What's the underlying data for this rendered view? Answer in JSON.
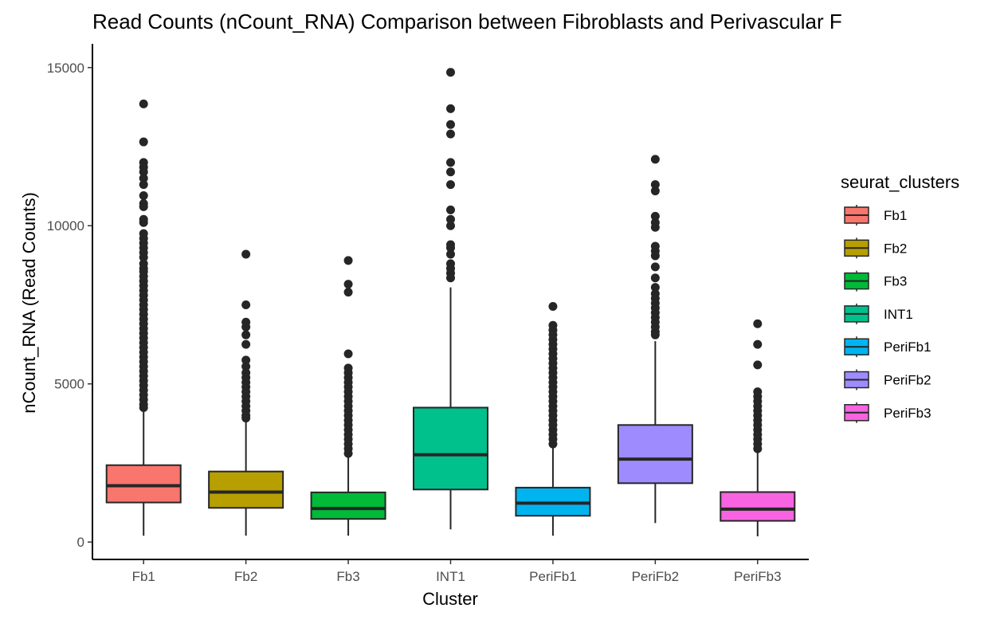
{
  "chart_data": {
    "type": "box",
    "title": "Read Counts (nCount_RNA) Comparison between Fibroblasts and Perivascular F",
    "xlabel": "Cluster",
    "ylabel": "nCount_RNA (Read Counts)",
    "ylim": [
      -550,
      15750
    ],
    "yticks": [
      0,
      5000,
      10000,
      15000
    ],
    "grid": false,
    "legend": {
      "title": "seurat_clusters",
      "position": "right"
    },
    "categories": [
      "Fb1",
      "Fb2",
      "Fb3",
      "INT1",
      "PeriFb1",
      "PeriFb2",
      "PeriFb3"
    ],
    "series": [
      {
        "name": "Fb1",
        "color": "#F8766D",
        "min": 200,
        "q1": 1250,
        "median": 1780,
        "q3": 2430,
        "max": 4200,
        "outliers": [
          13850,
          12650,
          12000,
          11850,
          11700,
          11500,
          11300,
          10950,
          10700,
          10600,
          10200,
          10100,
          9750,
          9600,
          9450,
          9300,
          9150,
          9000,
          8800,
          8650,
          8550,
          8400,
          8250,
          8100,
          7950,
          7800,
          7650,
          7500,
          7350,
          7200,
          7050,
          6900,
          6750,
          6600,
          6450,
          6300,
          6150,
          6000,
          5850,
          5700,
          5550,
          5400,
          5250,
          5100,
          4950,
          4800,
          4650,
          4500,
          4350,
          4250
        ]
      },
      {
        "name": "Fb2",
        "color": "#B79F00",
        "min": 200,
        "q1": 1080,
        "median": 1580,
        "q3": 2230,
        "max": 3850,
        "outliers": [
          9100,
          7500,
          6950,
          6800,
          6550,
          6250,
          5750,
          5550,
          5350,
          5200,
          5050,
          4900,
          4750,
          4600,
          4450,
          4300,
          4150,
          4000,
          3920
        ]
      },
      {
        "name": "Fb3",
        "color": "#00BA38",
        "min": 200,
        "q1": 730,
        "median": 1060,
        "q3": 1570,
        "max": 2750,
        "outliers": [
          8900,
          8150,
          7900,
          5950,
          5500,
          5350,
          5200,
          5050,
          4900,
          4750,
          4600,
          4450,
          4300,
          4150,
          4000,
          3850,
          3700,
          3550,
          3400,
          3250,
          3100,
          2950,
          2800
        ]
      },
      {
        "name": "INT1",
        "color": "#00C08B",
        "min": 400,
        "q1": 1660,
        "median": 2760,
        "q3": 4250,
        "max": 8050,
        "outliers": [
          14850,
          13700,
          13200,
          12900,
          12000,
          11700,
          11300,
          10500,
          10200,
          10000,
          9400,
          9300,
          9100,
          8800,
          8650,
          8500,
          8350
        ]
      },
      {
        "name": "PeriFb1",
        "color": "#00B4F0",
        "min": 200,
        "q1": 830,
        "median": 1230,
        "q3": 1720,
        "max": 3000,
        "outliers": [
          7450,
          6850,
          6700,
          6550,
          6400,
          6250,
          6100,
          5950,
          5800,
          5650,
          5500,
          5350,
          5200,
          5050,
          4900,
          4750,
          4600,
          4450,
          4300,
          4150,
          4000,
          3850,
          3700,
          3550,
          3400,
          3250,
          3100
        ]
      },
      {
        "name": "PeriFb2",
        "color": "#9E8CFF",
        "min": 600,
        "q1": 1860,
        "median": 2620,
        "q3": 3700,
        "max": 6350,
        "outliers": [
          12100,
          11300,
          11100,
          10300,
          10100,
          9950,
          9350,
          9200,
          9050,
          8700,
          8350,
          8050,
          7850,
          7700,
          7550,
          7400,
          7250,
          7100,
          6950,
          6800,
          6650,
          6550
        ]
      },
      {
        "name": "PeriFb3",
        "color": "#F763E0",
        "min": 180,
        "q1": 670,
        "median": 1040,
        "q3": 1580,
        "max": 2900,
        "outliers": [
          6900,
          6250,
          5600,
          4750,
          4600,
          4450,
          4300,
          4150,
          4000,
          3850,
          3700,
          3550,
          3400,
          3250,
          3100,
          2950
        ]
      }
    ]
  }
}
